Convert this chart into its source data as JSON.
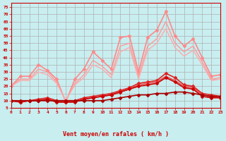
{
  "background_color": "#c8eef0",
  "grid_color": "#b0b0b0",
  "xlabel": "Vent moyen/en rafales ( km/h )",
  "xlabel_color": "#cc0000",
  "ylabel_ticks": [
    5,
    10,
    15,
    20,
    25,
    30,
    35,
    40,
    45,
    50,
    55,
    60,
    65,
    70,
    75
  ],
  "xlim": [
    0,
    23
  ],
  "ylim": [
    5,
    78
  ],
  "x": [
    0,
    1,
    2,
    3,
    4,
    5,
    6,
    7,
    8,
    9,
    10,
    11,
    12,
    13,
    14,
    15,
    16,
    17,
    18,
    19,
    20,
    21,
    22,
    23
  ],
  "series": [
    {
      "name": "rafales_max",
      "color": "#ff8888",
      "linewidth": 1.2,
      "marker": "D",
      "markersize": 2.5,
      "y": [
        20,
        27,
        27,
        35,
        31,
        25,
        9,
        25,
        32,
        44,
        38,
        32,
        54,
        55,
        30,
        54,
        59,
        72,
        55,
        48,
        53,
        40,
        27,
        28
      ]
    },
    {
      "name": "rafales_line1",
      "color": "#ff9999",
      "linewidth": 1.0,
      "marker": null,
      "markersize": 0,
      "y": [
        20,
        25,
        25,
        32,
        30,
        23,
        10,
        22,
        28,
        38,
        34,
        28,
        48,
        50,
        27,
        48,
        53,
        65,
        50,
        44,
        48,
        37,
        25,
        26
      ]
    },
    {
      "name": "rafales_line2",
      "color": "#ffaaaa",
      "linewidth": 1.0,
      "marker": null,
      "markersize": 0,
      "y": [
        20,
        24,
        24,
        30,
        28,
        22,
        10,
        21,
        26,
        35,
        32,
        26,
        44,
        47,
        25,
        45,
        50,
        60,
        47,
        41,
        45,
        35,
        24,
        25
      ]
    },
    {
      "name": "vent_max",
      "color": "#dd2222",
      "linewidth": 1.2,
      "marker": "D",
      "markersize": 2.5,
      "y": [
        10,
        9,
        10,
        11,
        12,
        10,
        10,
        10,
        12,
        13,
        14,
        15,
        17,
        19,
        22,
        23,
        24,
        29,
        26,
        21,
        20,
        15,
        14,
        13
      ]
    },
    {
      "name": "vent_line1",
      "color": "#ee4444",
      "linewidth": 1.0,
      "marker": null,
      "markersize": 0,
      "y": [
        10,
        9,
        10,
        10,
        11,
        9,
        9,
        9,
        11,
        12,
        13,
        14,
        16,
        18,
        21,
        22,
        23,
        27,
        24,
        20,
        19,
        14,
        13,
        12
      ]
    },
    {
      "name": "vent_line2",
      "color": "#cc0000",
      "linewidth": 1.2,
      "marker": "D",
      "markersize": 2.5,
      "y": [
        10,
        9,
        10,
        10,
        11,
        9,
        9,
        9,
        11,
        12,
        13,
        14,
        16,
        18,
        20,
        21,
        22,
        26,
        23,
        19,
        18,
        13,
        12,
        12
      ]
    },
    {
      "name": "vent_moyen",
      "color": "#aa0000",
      "linewidth": 1.2,
      "marker": "D",
      "markersize": 2.5,
      "y": [
        10,
        10,
        10,
        10,
        10,
        10,
        10,
        10,
        10,
        10,
        10,
        11,
        12,
        13,
        14,
        14,
        15,
        15,
        16,
        16,
        15,
        14,
        13,
        13
      ]
    }
  ]
}
